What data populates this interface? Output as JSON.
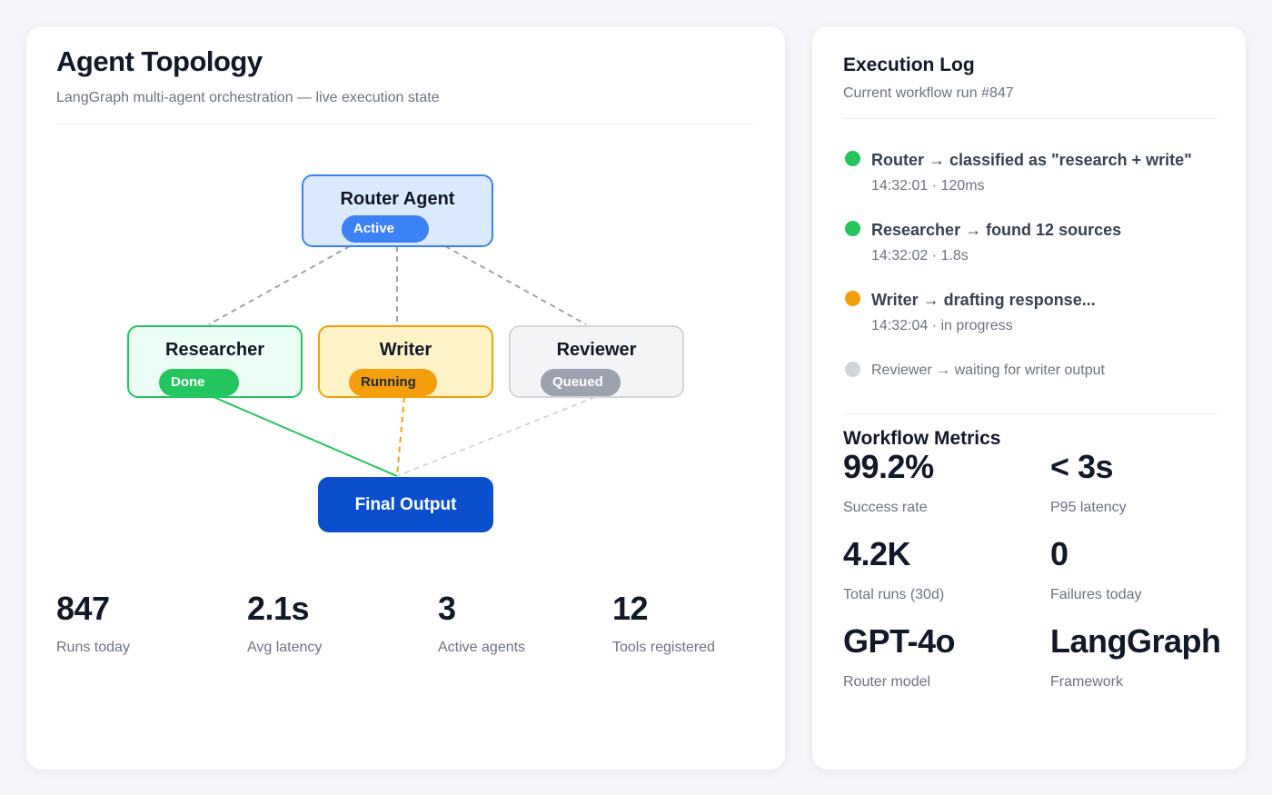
{
  "topology": {
    "title": "Agent Topology",
    "subtitle": "LangGraph multi-agent orchestration — live execution state",
    "nodes": {
      "router": {
        "name": "Router Agent",
        "status": "Active",
        "color": "#3b82f6"
      },
      "researcher": {
        "name": "Researcher",
        "status": "Done",
        "color": "#22c55e"
      },
      "writer": {
        "name": "Writer",
        "status": "Running",
        "color": "#f59e0b"
      },
      "reviewer": {
        "name": "Reviewer",
        "status": "Queued",
        "color": "#9ca3af"
      },
      "final": {
        "name": "Final Output",
        "color": "#0b4fce"
      }
    },
    "stats": [
      {
        "value": "847",
        "label": "Runs today"
      },
      {
        "value": "2.1s",
        "label": "Avg latency"
      },
      {
        "value": "3",
        "label": "Active agents"
      },
      {
        "value": "12",
        "label": "Tools registered"
      }
    ]
  },
  "log": {
    "title": "Execution Log",
    "subtitle": "Current workflow run #847",
    "entries": [
      {
        "text": "Router → classified as \"research + write\"",
        "meta": "14:32:01 · 120ms",
        "status": "done"
      },
      {
        "text": "Researcher → found 12 sources",
        "meta": "14:32:02 · 1.8s",
        "status": "done"
      },
      {
        "text": "Writer → drafting response...",
        "meta": "14:32:04 · in progress",
        "status": "running"
      },
      {
        "text": "Reviewer → waiting for writer output",
        "status": "queued"
      }
    ]
  },
  "metrics": {
    "title": "Workflow Metrics",
    "items": [
      {
        "value": "99.2%",
        "label": "Success rate"
      },
      {
        "value": "< 3s",
        "label": "P95 latency"
      },
      {
        "value": "4.2K",
        "label": "Total runs (30d)"
      },
      {
        "value": "0",
        "label": "Failures today"
      },
      {
        "value": "GPT-4o",
        "label": "Router model"
      },
      {
        "value": "LangGraph",
        "label": "Framework"
      }
    ]
  }
}
